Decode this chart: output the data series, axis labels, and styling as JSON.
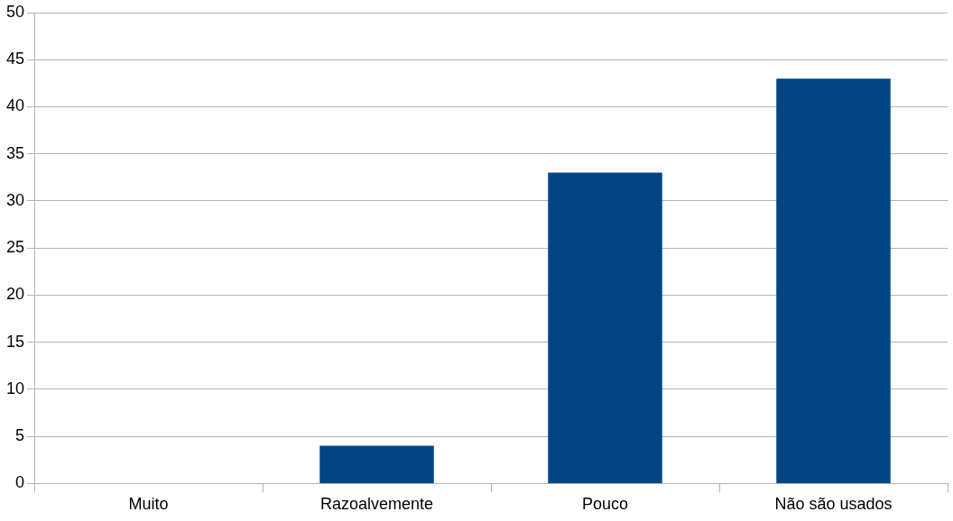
{
  "chart_data": {
    "type": "bar",
    "categories": [
      "Muito",
      "Razoalvemente",
      "Pouco",
      "Não são usados"
    ],
    "values": [
      0,
      4,
      33,
      43
    ],
    "color": "#004586",
    "ylim": [
      0,
      50
    ],
    "yticks": [
      0,
      5,
      10,
      15,
      20,
      25,
      30,
      35,
      40,
      45,
      50
    ],
    "grid": "y",
    "legend": false
  }
}
